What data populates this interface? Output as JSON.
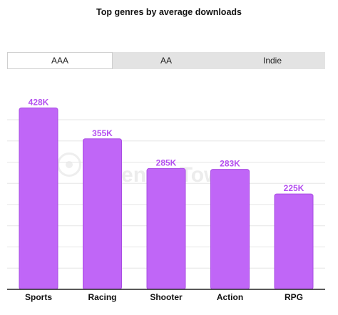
{
  "title": "Top genres by average downloads",
  "tabs": [
    {
      "label": "AAA",
      "active": true
    },
    {
      "label": "AA",
      "active": false
    },
    {
      "label": "Indie",
      "active": false
    }
  ],
  "watermark": "SensorTower",
  "colors": {
    "bar": "#c066f7",
    "bar_stroke": "#a94ee3",
    "label": "#b550f0",
    "grid": "#e6e6e6",
    "axis": "#222222"
  },
  "chart_data": {
    "type": "bar",
    "title": "Top genres by average downloads",
    "categories": [
      "Sports",
      "Racing",
      "Shooter",
      "Action",
      "RPG"
    ],
    "values": [
      428,
      355,
      285,
      283,
      225
    ],
    "data_labels": [
      "428K",
      "355K",
      "285K",
      "283K",
      "225K"
    ],
    "xlabel": "",
    "ylabel": "",
    "ylim": [
      0,
      440
    ],
    "grid": true
  }
}
